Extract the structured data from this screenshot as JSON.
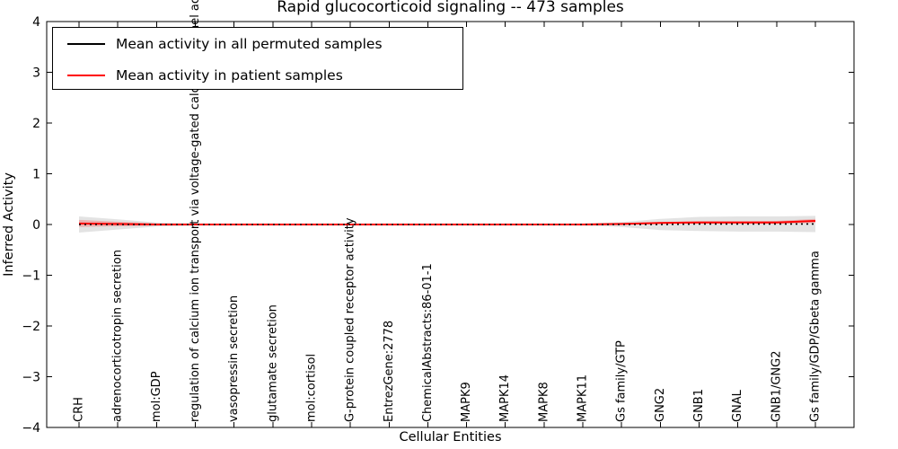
{
  "figure": {
    "title": "Rapid glucocorticoid signaling -- 473 samples",
    "xlabel": "Cellular Entities",
    "ylabel": "Inferred Activity"
  },
  "legend": {
    "items": [
      {
        "label": "Mean activity in all permuted samples",
        "color": "#000000"
      },
      {
        "label": "Mean activity in patient samples",
        "color": "#ff0000"
      }
    ]
  },
  "chart_data": {
    "type": "line",
    "title": "Rapid glucocorticoid signaling -- 473 samples",
    "xlabel": "Cellular Entities",
    "ylabel": "Inferred Activity",
    "ylim": [
      -4,
      4
    ],
    "ytick_values": [
      4,
      3,
      2,
      1,
      0,
      -1,
      -2,
      -3,
      -4
    ],
    "ytick_labels": [
      "4",
      "3",
      "2",
      "1",
      "0",
      "−1",
      "−2",
      "−3",
      "−4"
    ],
    "grid": false,
    "legend_position": "upper left",
    "categories": [
      "CRH",
      "adrenocorticotropin secretion",
      "mol:GDP",
      "regulation of calcium ion transport via voltage-gated calcium channel activity",
      "vasopressin secretion",
      "glutamate secretion",
      "mol:cortisol",
      "G-protein coupled receptor activity",
      "EntrezGene:2778",
      "ChemicalAbstracts:86-01-1",
      "MAPK9",
      "MAPK14",
      "MAPK8",
      "MAPK11",
      "Gs family/GTP",
      "GNG2",
      "GNB1",
      "GNAL",
      "GNB1/GNG2",
      "Gs family/GDP/Gbeta gamma"
    ],
    "series": [
      {
        "name": "Mean activity in all permuted samples",
        "color": "#000000",
        "line_style": "dashed",
        "band_color": "rgba(0,0,0,0.11)",
        "values": [
          0,
          0,
          0,
          0,
          0,
          0,
          0,
          0,
          0,
          0,
          0,
          0,
          0,
          0,
          0,
          0,
          0.01,
          0.01,
          0.01,
          0.01
        ],
        "band_halfwidth": [
          0.16,
          0.1,
          0.04,
          0.02,
          0.015,
          0.015,
          0.015,
          0.015,
          0.015,
          0.015,
          0.015,
          0.015,
          0.015,
          0.02,
          0.05,
          0.11,
          0.14,
          0.15,
          0.15,
          0.16
        ]
      },
      {
        "name": "Mean activity in patient samples",
        "color": "#ff0000",
        "line_style": "solid",
        "band_color": "rgba(255,0,0,0.22)",
        "values": [
          0.02,
          0.01,
          0,
          0,
          0,
          0,
          0,
          0,
          0,
          0,
          0,
          0,
          0,
          0,
          0.01,
          0.03,
          0.04,
          0.04,
          0.04,
          0.07
        ],
        "band_halfwidth": [
          0.07,
          0.045,
          0.02,
          0.01,
          0.008,
          0.008,
          0.008,
          0.008,
          0.008,
          0.008,
          0.008,
          0.008,
          0.008,
          0.01,
          0.015,
          0.02,
          0.025,
          0.025,
          0.03,
          0.04
        ]
      }
    ]
  }
}
